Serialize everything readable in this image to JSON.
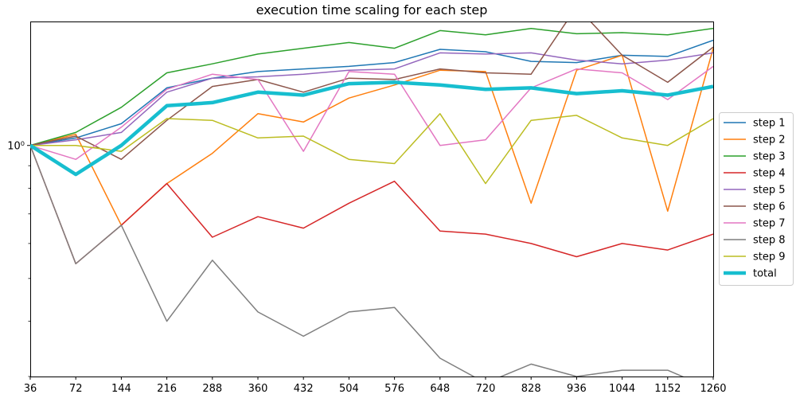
{
  "chart_data": {
    "type": "line",
    "title": "execution time scaling for each step",
    "xlabel": "",
    "ylabel": "",
    "yscale": "log",
    "ylim": [
      0.3,
      1.9
    ],
    "x": [
      "36",
      "72",
      "144",
      "216",
      "288",
      "360",
      "432",
      "504",
      "576",
      "648",
      "720",
      "828",
      "936",
      "1044",
      "1152",
      "1260"
    ],
    "ytick_labels": [
      {
        "value": 1.0,
        "label": "10⁰"
      }
    ],
    "legend_position": "right",
    "series": [
      {
        "name": "step 1",
        "color": "#1f77b4",
        "width": 1.5,
        "values": [
          1.0,
          1.04,
          1.12,
          1.35,
          1.42,
          1.47,
          1.49,
          1.51,
          1.54,
          1.65,
          1.63,
          1.55,
          1.54,
          1.6,
          1.59,
          1.73
        ]
      },
      {
        "name": "step 2",
        "color": "#ff7f0e",
        "width": 1.5,
        "values": [
          1.0,
          1.06,
          0.66,
          0.82,
          0.96,
          1.18,
          1.13,
          1.28,
          1.37,
          1.48,
          1.47,
          0.74,
          1.48,
          1.6,
          0.71,
          1.66
        ]
      },
      {
        "name": "step 3",
        "color": "#2ca02c",
        "width": 1.5,
        "values": [
          1.0,
          1.07,
          1.22,
          1.46,
          1.53,
          1.61,
          1.66,
          1.71,
          1.66,
          1.82,
          1.78,
          1.84,
          1.79,
          1.8,
          1.78,
          1.84
        ]
      },
      {
        "name": "step 4",
        "color": "#d62728",
        "width": 1.5,
        "values": [
          1.0,
          0.54,
          0.66,
          0.82,
          0.62,
          0.69,
          0.65,
          0.74,
          0.83,
          0.64,
          0.63,
          0.6,
          0.56,
          0.6,
          0.58,
          0.63
        ]
      },
      {
        "name": "step 5",
        "color": "#9467bd",
        "width": 1.5,
        "values": [
          1.0,
          1.03,
          1.07,
          1.32,
          1.42,
          1.43,
          1.45,
          1.48,
          1.49,
          1.62,
          1.61,
          1.62,
          1.56,
          1.53,
          1.56,
          1.62
        ]
      },
      {
        "name": "step 6",
        "color": "#8c564b",
        "width": 1.5,
        "values": [
          1.0,
          1.05,
          0.93,
          1.14,
          1.36,
          1.41,
          1.32,
          1.42,
          1.41,
          1.49,
          1.46,
          1.45,
          2.06,
          1.6,
          1.39,
          1.67
        ]
      },
      {
        "name": "step 7",
        "color": "#e377c2",
        "width": 1.5,
        "values": [
          1.0,
          0.93,
          1.1,
          1.34,
          1.45,
          1.41,
          0.97,
          1.47,
          1.45,
          1.0,
          1.03,
          1.35,
          1.49,
          1.46,
          1.27,
          1.51
        ]
      },
      {
        "name": "step 8",
        "color": "#7f7f7f",
        "width": 1.5,
        "values": [
          1.0,
          0.54,
          0.66,
          0.4,
          0.55,
          0.42,
          0.37,
          0.42,
          0.43,
          0.33,
          0.29,
          0.32,
          0.3,
          0.31,
          0.31,
          0.28
        ]
      },
      {
        "name": "step 9",
        "color": "#bcbd22",
        "width": 1.5,
        "values": [
          1.0,
          1.0,
          0.97,
          1.15,
          1.14,
          1.04,
          1.05,
          0.93,
          0.91,
          1.18,
          0.82,
          1.14,
          1.17,
          1.04,
          1.0,
          1.15
        ]
      },
      {
        "name": "total",
        "color": "#17becf",
        "width": 4.5,
        "values": [
          1.0,
          0.86,
          1.0,
          1.23,
          1.25,
          1.32,
          1.3,
          1.38,
          1.39,
          1.37,
          1.34,
          1.35,
          1.31,
          1.33,
          1.3,
          1.36
        ]
      }
    ]
  }
}
